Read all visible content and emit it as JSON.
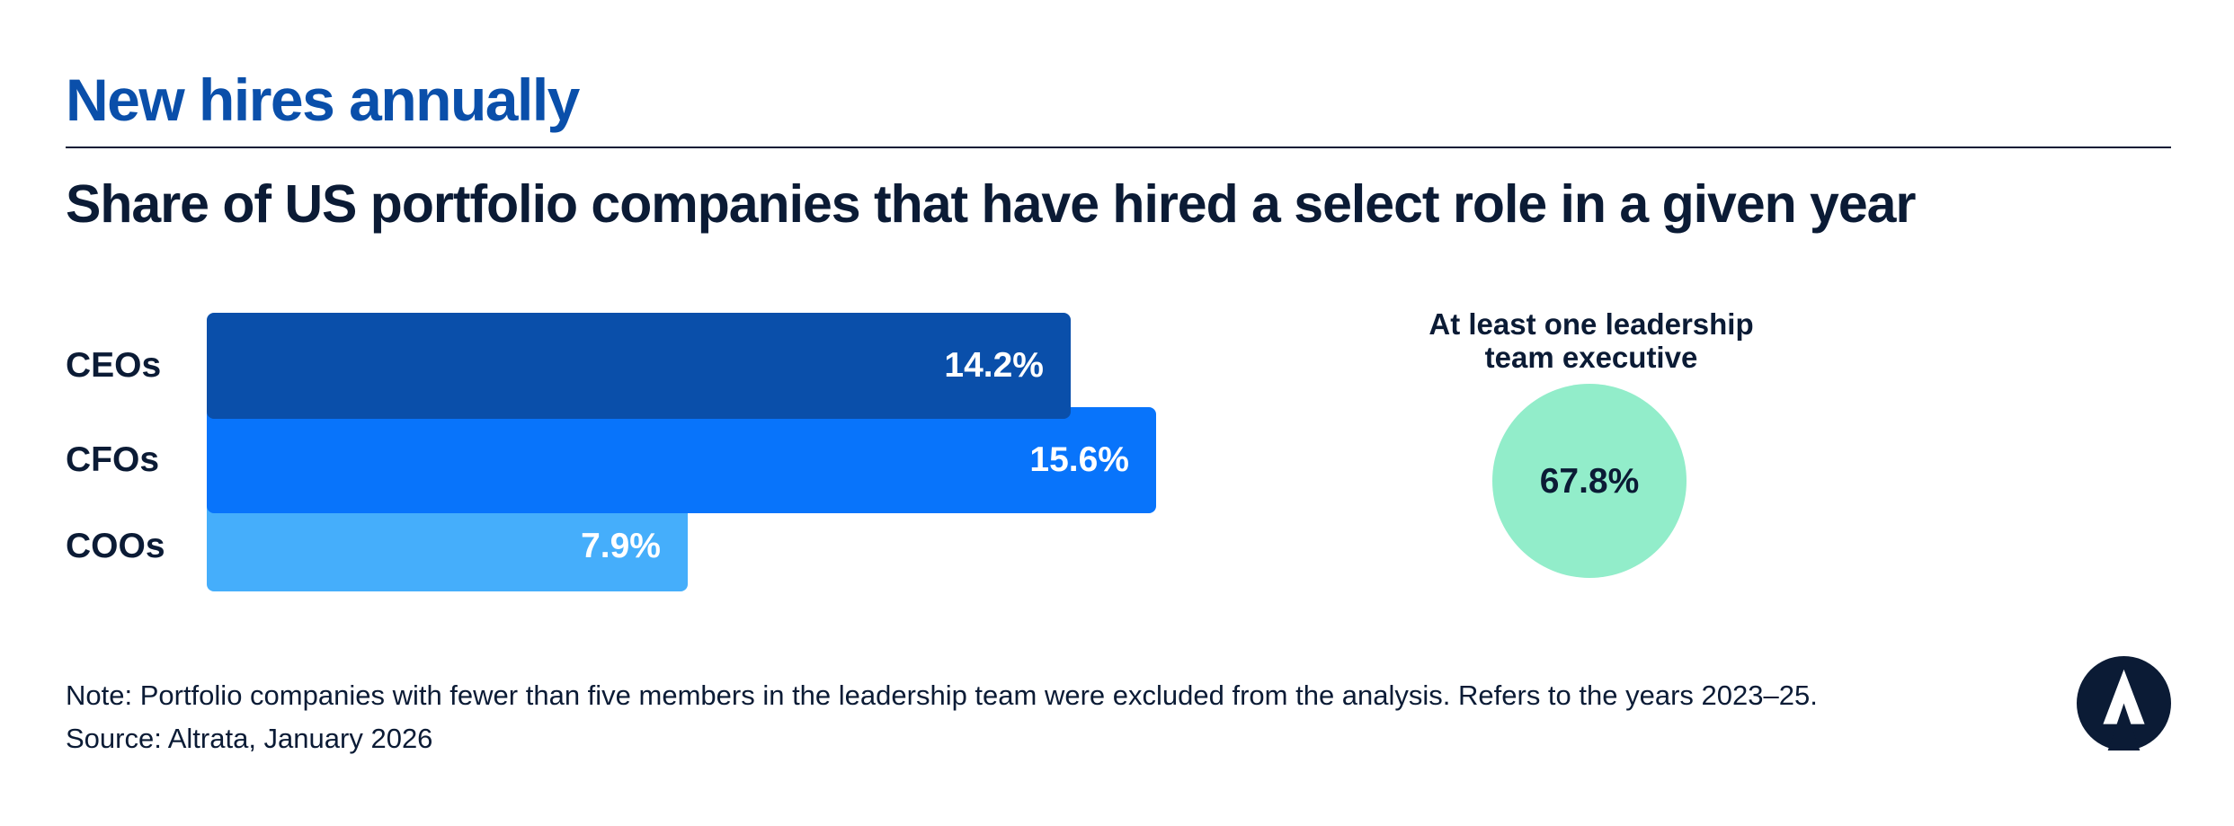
{
  "header": {
    "kicker": "New hires annually",
    "subtitle": "Share of US portfolio companies that have hired a select role in a given year"
  },
  "chart_data": {
    "type": "bar",
    "orientation": "horizontal",
    "categories": [
      "CEOs",
      "CFOs",
      "COOs"
    ],
    "values": [
      14.2,
      15.6,
      7.9
    ],
    "value_labels": [
      "14.2%",
      "15.6%",
      "7.9%"
    ],
    "unit": "%",
    "xlim": [
      0,
      15.6
    ],
    "title": "Share of US portfolio companies that have hired a select role in a given year",
    "xlabel": "",
    "ylabel": "",
    "grid": false,
    "colors": [
      "#0a4faa",
      "#0874fb",
      "#45aefb"
    ]
  },
  "callout": {
    "title_line1": "At least one leadership",
    "title_line2": "team executive",
    "value": 67.8,
    "value_label": "67.8%",
    "color": "#92edca"
  },
  "footer": {
    "note": "Note: Portfolio companies with fewer than five members in the leadership team were excluded from the analysis. Refers to the years 2023–25.",
    "source": "Source: Altrata, January 2026"
  },
  "colors": {
    "kicker": "#0a4faa",
    "text": "#0b1b35",
    "logo": "#0b1b35"
  },
  "icons": {
    "logo": "altrata-logo-icon"
  }
}
